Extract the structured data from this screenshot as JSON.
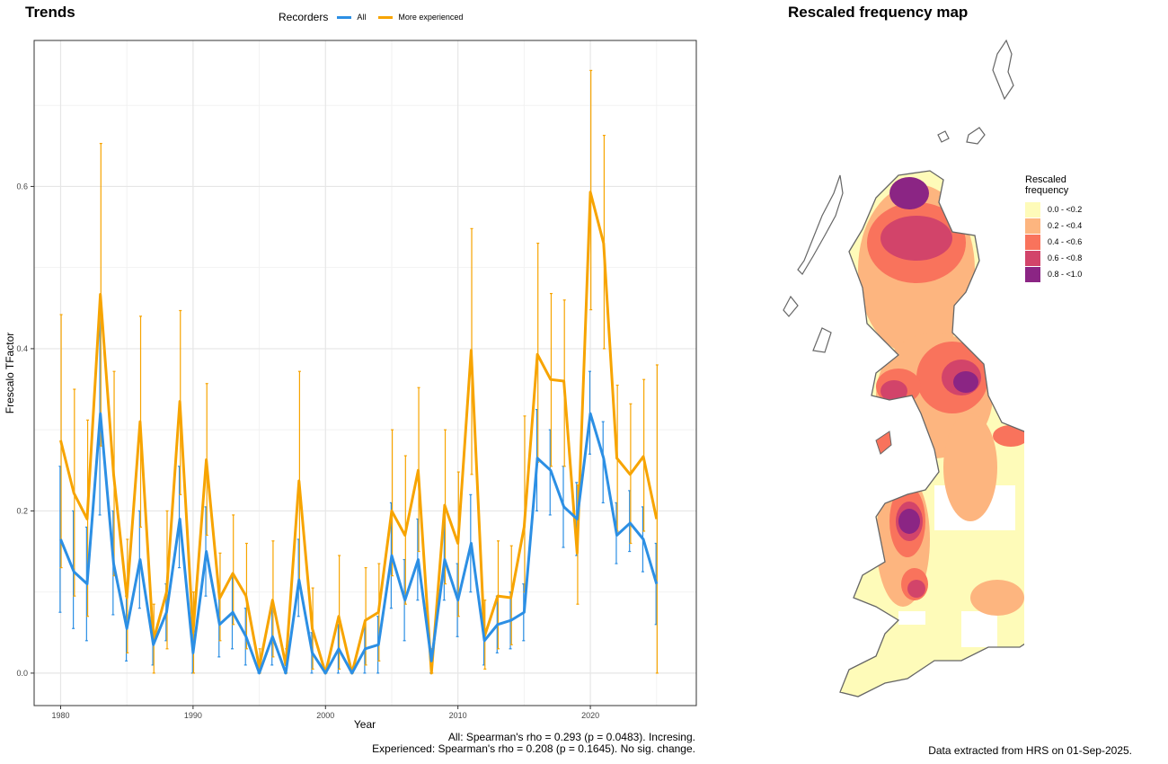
{
  "trends": {
    "title": "Trends",
    "legend": {
      "title": "Recorders",
      "items": [
        {
          "label": "All",
          "color": "#2c8fe4"
        },
        {
          "label": "More experienced",
          "color": "#f7a400"
        }
      ]
    },
    "stats_all": "All: Spearman's rho = 0.293 (p = 0.0483). Incresing.",
    "stats_exp": "Experienced: Spearman's rho = 0.208 (p = 0.1645). No sig. change."
  },
  "chart_data": {
    "type": "line",
    "xlabel": "Year",
    "ylabel": "Frescalo TFactor",
    "xlim": [
      1978,
      2028
    ],
    "ylim": [
      -0.04,
      0.78
    ],
    "xticks": [
      1980,
      1990,
      2000,
      2010,
      2020
    ],
    "yticks": [
      0.0,
      0.2,
      0.4,
      0.6
    ],
    "ytick_labels": [
      "0.0",
      "0.2",
      "0.4",
      "0.6"
    ],
    "grid": true,
    "x": [
      1980,
      1981,
      1982,
      1983,
      1984,
      1985,
      1986,
      1987,
      1988,
      1989,
      1990,
      1991,
      1992,
      1993,
      1994,
      1995,
      1996,
      1997,
      1998,
      1999,
      2000,
      2001,
      2002,
      2003,
      2004,
      2005,
      2006,
      2007,
      2008,
      2009,
      2010,
      2011,
      2012,
      2013,
      2014,
      2015,
      2016,
      2017,
      2018,
      2019,
      2020,
      2021,
      2022,
      2023,
      2024,
      2025
    ],
    "series": [
      {
        "name": "All",
        "color": "#2c8fe4",
        "values": [
          0.165,
          0.125,
          0.11,
          0.32,
          0.135,
          0.055,
          0.14,
          0.035,
          0.075,
          0.19,
          0.025,
          0.15,
          0.06,
          0.075,
          0.045,
          0.0,
          0.045,
          0.0,
          0.115,
          0.025,
          0.0,
          0.03,
          0.0,
          0.03,
          0.035,
          0.145,
          0.09,
          0.14,
          0.015,
          0.14,
          0.09,
          0.16,
          0.04,
          0.06,
          0.065,
          0.075,
          0.265,
          0.25,
          0.205,
          0.19,
          0.32,
          0.265,
          0.17,
          0.185,
          0.165,
          0.11
        ],
        "lower": [
          0.075,
          0.055,
          0.04,
          0.195,
          0.072,
          0.015,
          0.08,
          0.01,
          0.04,
          0.13,
          0.0,
          0.095,
          0.02,
          0.03,
          0.01,
          0.0,
          0.01,
          0.0,
          0.07,
          0.0,
          0.0,
          0.0,
          0.0,
          0.0,
          0.0,
          0.08,
          0.04,
          0.09,
          0.0,
          0.09,
          0.045,
          0.1,
          0.01,
          0.025,
          0.03,
          0.04,
          0.2,
          0.195,
          0.155,
          0.145,
          0.27,
          0.21,
          0.135,
          0.15,
          0.125,
          0.06
        ],
        "upper": [
          0.255,
          0.2,
          0.18,
          0.445,
          0.2,
          0.095,
          0.2,
          0.06,
          0.11,
          0.255,
          0.05,
          0.205,
          0.1,
          0.12,
          0.08,
          0.0,
          0.08,
          0.005,
          0.165,
          0.05,
          0.005,
          0.06,
          0.005,
          0.06,
          0.07,
          0.21,
          0.14,
          0.19,
          0.03,
          0.195,
          0.135,
          0.22,
          0.07,
          0.095,
          0.1,
          0.11,
          0.325,
          0.3,
          0.255,
          0.235,
          0.372,
          0.31,
          0.21,
          0.225,
          0.205,
          0.16
        ]
      },
      {
        "name": "More experienced",
        "color": "#f7a400",
        "values": [
          0.287,
          0.222,
          0.19,
          0.467,
          0.245,
          0.093,
          0.31,
          0.04,
          0.1,
          0.335,
          0.05,
          0.263,
          0.092,
          0.123,
          0.095,
          0.007,
          0.09,
          0.01,
          0.237,
          0.055,
          0.0,
          0.07,
          0.0,
          0.065,
          0.075,
          0.2,
          0.17,
          0.25,
          0.0,
          0.207,
          0.16,
          0.398,
          0.045,
          0.095,
          0.093,
          0.18,
          0.393,
          0.362,
          0.36,
          0.148,
          0.593,
          0.53,
          0.265,
          0.245,
          0.267,
          0.19
        ],
        "lower": [
          0.13,
          0.095,
          0.07,
          0.28,
          0.12,
          0.025,
          0.18,
          0.0,
          0.03,
          0.22,
          0.0,
          0.17,
          0.04,
          0.06,
          0.03,
          0.0,
          0.02,
          0.0,
          0.11,
          0.005,
          0.0,
          0.005,
          0.0,
          0.01,
          0.015,
          0.12,
          0.085,
          0.15,
          0.0,
          0.11,
          0.07,
          0.245,
          0.005,
          0.03,
          0.035,
          0.1,
          0.26,
          0.255,
          0.255,
          0.085,
          0.448,
          0.4,
          0.175,
          0.16,
          0.175,
          0.0
        ],
        "upper": [
          0.442,
          0.35,
          0.312,
          0.653,
          0.372,
          0.165,
          0.44,
          0.085,
          0.2,
          0.447,
          0.1,
          0.357,
          0.148,
          0.195,
          0.16,
          0.03,
          0.163,
          0.03,
          0.372,
          0.105,
          0.005,
          0.145,
          0.005,
          0.13,
          0.135,
          0.3,
          0.268,
          0.352,
          0.03,
          0.3,
          0.248,
          0.548,
          0.09,
          0.163,
          0.157,
          0.317,
          0.53,
          0.468,
          0.46,
          0.232,
          0.743,
          0.663,
          0.355,
          0.332,
          0.362,
          0.38
        ]
      }
    ]
  },
  "map": {
    "title": "Rescaled frequency map",
    "legend_title_1": "Rescaled",
    "legend_title_2": "frequency",
    "classes": [
      {
        "label": "0.0 - <0.2",
        "color": "#fefbb9"
      },
      {
        "label": "0.2 - <0.4",
        "color": "#fdb57f"
      },
      {
        "label": "0.4 - <0.6",
        "color": "#f9735c"
      },
      {
        "label": "0.6 - <0.8",
        "color": "#d2446a"
      },
      {
        "label": "0.8 - <1.0",
        "color": "#8b2584"
      }
    ],
    "outline_color": "#666666",
    "footer": "Data extracted from HRS on 01-Sep-2025."
  }
}
